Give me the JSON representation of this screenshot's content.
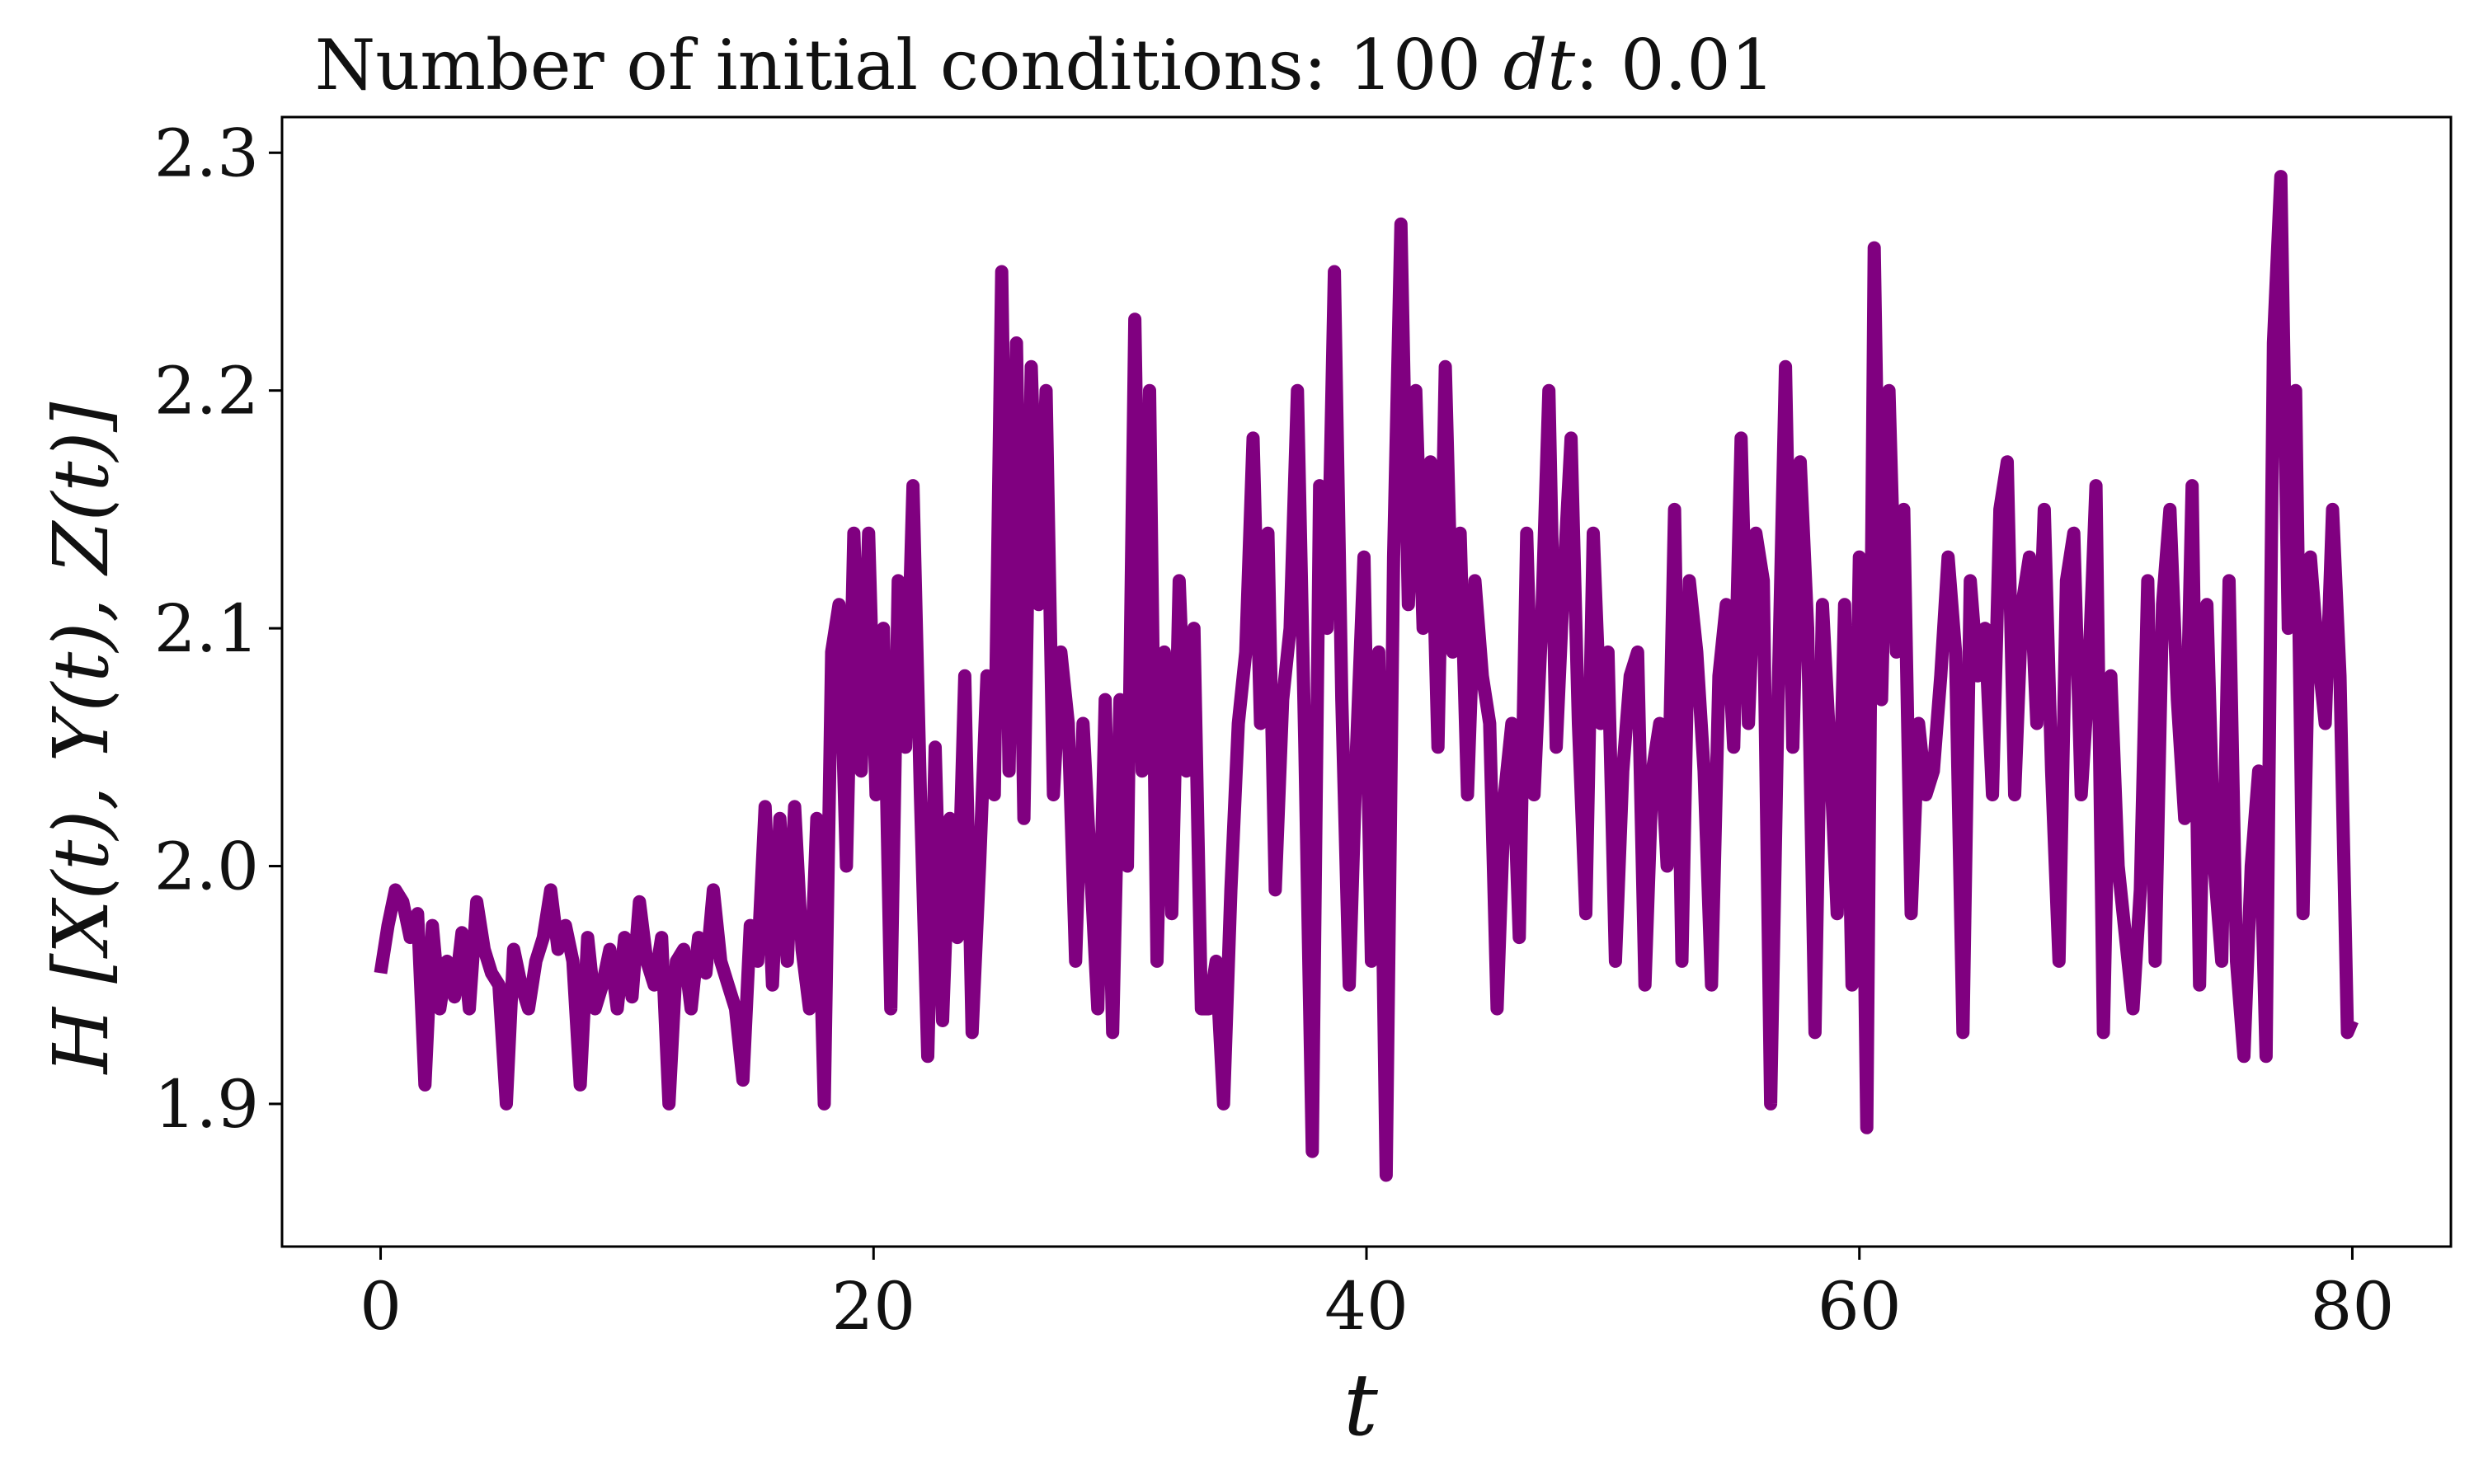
{
  "chart_data": {
    "type": "line",
    "title": "Number of initial conditions: 100 dt: 0.01",
    "title_parts": {
      "prefix": "Number of initial conditions: 100 ",
      "dt_symbol": "dt",
      "suffix": ": 0.01"
    },
    "xlabel": "t",
    "ylabel": "H [X(t), Y(t), Z(t)]",
    "xlim": [
      -4,
      84
    ],
    "ylim": [
      1.84,
      2.315
    ],
    "x_ticks": [
      0,
      20,
      40,
      60,
      80
    ],
    "x_tick_labels": [
      "0",
      "20",
      "40",
      "60",
      "80"
    ],
    "y_ticks": [
      1.9,
      2.0,
      2.1,
      2.2,
      2.3
    ],
    "y_tick_labels": [
      "1.9",
      "2.0",
      "2.1",
      "2.2",
      "2.3"
    ],
    "grid": false,
    "series": [
      {
        "color": "#800080",
        "x": [
          0,
          0.3,
          0.6,
          0.9,
          1.2,
          1.5,
          1.8,
          2.1,
          2.4,
          2.7,
          3.0,
          3.3,
          3.6,
          3.9,
          4.2,
          4.5,
          4.8,
          5.1,
          5.4,
          5.7,
          6.0,
          6.3,
          6.6,
          6.9,
          7.2,
          7.5,
          7.8,
          8.1,
          8.4,
          8.7,
          9.0,
          9.3,
          9.6,
          9.9,
          10.2,
          10.5,
          10.8,
          11.1,
          11.4,
          11.7,
          12.0,
          12.3,
          12.6,
          12.9,
          13.2,
          13.5,
          13.8,
          14.1,
          14.4,
          14.7,
          15.0,
          15.3,
          15.6,
          15.9,
          16.2,
          16.5,
          16.8,
          17.1,
          17.4,
          17.7,
          18.0,
          18.3,
          18.6,
          18.9,
          19.2,
          19.5,
          19.8,
          20.1,
          20.4,
          20.7,
          21.0,
          21.3,
          21.6,
          21.9,
          22.2,
          22.5,
          22.8,
          23.1,
          23.4,
          23.7,
          24.0,
          24.3,
          24.6,
          24.9,
          25.2,
          25.5,
          25.8,
          26.1,
          26.4,
          26.7,
          27.0,
          27.3,
          27.6,
          27.9,
          28.2,
          28.5,
          28.8,
          29.1,
          29.4,
          29.7,
          30.0,
          30.3,
          30.6,
          30.9,
          31.2,
          31.5,
          31.8,
          32.1,
          32.4,
          32.7,
          33.0,
          33.3,
          33.6,
          33.9,
          34.2,
          34.5,
          34.8,
          35.1,
          35.4,
          35.7,
          36.0,
          36.3,
          36.6,
          36.9,
          37.2,
          37.5,
          37.8,
          38.1,
          38.4,
          38.7,
          39.0,
          39.3,
          39.6,
          39.9,
          40.2,
          40.5,
          40.8,
          41.1,
          41.4,
          41.7,
          42.0,
          42.3,
          42.6,
          42.9,
          43.2,
          43.5,
          43.8,
          44.1,
          44.4,
          44.7,
          45.0,
          45.3,
          45.6,
          45.9,
          46.2,
          46.5,
          46.8,
          47.1,
          47.4,
          47.7,
          48.0,
          48.3,
          48.6,
          48.9,
          49.2,
          49.5,
          49.8,
          50.1,
          50.4,
          50.7,
          51.0,
          51.3,
          51.6,
          51.9,
          52.2,
          52.5,
          52.8,
          53.1,
          53.4,
          53.7,
          54.0,
          54.3,
          54.6,
          54.9,
          55.2,
          55.5,
          55.8,
          56.1,
          56.4,
          56.7,
          57.0,
          57.3,
          57.6,
          57.9,
          58.2,
          58.5,
          58.8,
          59.1,
          59.4,
          59.7,
          60.0,
          60.3,
          60.6,
          60.9,
          61.2,
          61.5,
          61.8,
          62.1,
          62.4,
          62.7,
          63.0,
          63.3,
          63.6,
          63.9,
          64.2,
          64.5,
          64.8,
          65.1,
          65.4,
          65.7,
          66.0,
          66.3,
          66.6,
          66.9,
          67.2,
          67.5,
          67.8,
          68.1,
          68.4,
          68.7,
          69.0,
          69.3,
          69.6,
          69.9,
          70.2,
          70.5,
          70.8,
          71.1,
          71.4,
          71.7,
          72.0,
          72.3,
          72.6,
          72.9,
          73.2,
          73.5,
          73.8,
          74.1,
          74.4,
          74.7,
          75.0,
          75.3,
          75.6,
          75.9,
          76.2,
          76.5,
          76.8,
          77.1,
          77.4,
          77.7,
          78.0,
          78.3,
          78.6,
          78.9,
          79.2,
          79.5,
          79.8,
          80.0
        ],
        "y": [
          1.955,
          1.975,
          1.99,
          1.985,
          1.97,
          1.98,
          1.908,
          1.975,
          1.94,
          1.96,
          1.945,
          1.972,
          1.94,
          1.985,
          1.965,
          1.955,
          1.95,
          1.9,
          1.965,
          1.95,
          1.94,
          1.96,
          1.97,
          1.99,
          1.965,
          1.975,
          1.96,
          1.908,
          1.97,
          1.94,
          1.95,
          1.965,
          1.94,
          1.97,
          1.945,
          1.985,
          1.96,
          1.95,
          1.97,
          1.9,
          1.96,
          1.965,
          1.94,
          1.97,
          1.955,
          1.99,
          1.96,
          1.95,
          1.94,
          1.91,
          1.975,
          1.96,
          2.025,
          1.95,
          2.02,
          1.96,
          2.025,
          1.965,
          1.94,
          2.02,
          1.9,
          2.09,
          2.11,
          2.0,
          2.14,
          2.04,
          2.14,
          2.03,
          2.1,
          1.94,
          2.12,
          2.05,
          2.16,
          2.03,
          1.92,
          2.05,
          1.935,
          2.02,
          1.97,
          2.08,
          1.93,
          2.0,
          2.08,
          2.03,
          2.25,
          2.04,
          2.22,
          2.02,
          2.21,
          2.11,
          2.2,
          2.03,
          2.09,
          2.06,
          1.96,
          2.06,
          2.0,
          1.94,
          2.07,
          1.93,
          2.07,
          2.0,
          2.23,
          2.04,
          2.2,
          1.96,
          2.09,
          1.98,
          2.12,
          2.04,
          2.1,
          1.94,
          1.94,
          1.96,
          1.9,
          1.99,
          2.06,
          2.09,
          2.18,
          2.06,
          2.14,
          1.99,
          2.07,
          2.1,
          2.2,
          2.05,
          1.88,
          2.16,
          2.1,
          2.25,
          2.07,
          1.95,
          2.05,
          2.13,
          1.96,
          2.09,
          1.87,
          2.13,
          2.27,
          2.11,
          2.2,
          2.1,
          2.17,
          2.05,
          2.21,
          2.09,
          2.14,
          2.03,
          2.12,
          2.08,
          2.06,
          1.94,
          2.03,
          2.06,
          1.97,
          2.14,
          2.03,
          2.1,
          2.2,
          2.05,
          2.12,
          2.18,
          2.06,
          1.98,
          2.14,
          2.06,
          2.09,
          1.96,
          2.04,
          2.08,
          2.09,
          1.95,
          2.04,
          2.06,
          2.0,
          2.15,
          1.96,
          2.12,
          2.09,
          2.04,
          1.95,
          2.08,
          2.11,
          2.05,
          2.18,
          2.06,
          2.14,
          2.12,
          1.9,
          2.07,
          2.21,
          2.05,
          2.17,
          2.1,
          1.93,
          2.11,
          2.05,
          1.98,
          2.11,
          1.95,
          2.13,
          1.89,
          2.26,
          2.07,
          2.2,
          2.09,
          2.15,
          1.98,
          2.06,
          2.03,
          2.04,
          2.08,
          2.13,
          2.09,
          1.93,
          2.12,
          2.08,
          2.1,
          2.03,
          2.15,
          2.17,
          2.03,
          2.11,
          2.13,
          2.06,
          2.15,
          2.04,
          1.96,
          2.12,
          2.14,
          2.03,
          2.08,
          2.16,
          1.93,
          2.08,
          2.0,
          1.97,
          1.94,
          1.99,
          2.12,
          1.96,
          2.11,
          2.15,
          2.07,
          2.02,
          2.16,
          1.95,
          2.11,
          2.0,
          1.96,
          2.12,
          1.96,
          1.92,
          2.0,
          2.04,
          1.92,
          2.22,
          2.29,
          2.1,
          2.2,
          1.98,
          2.13,
          2.09,
          2.06,
          2.15,
          2.08,
          1.93,
          1.935
        ]
      }
    ]
  }
}
